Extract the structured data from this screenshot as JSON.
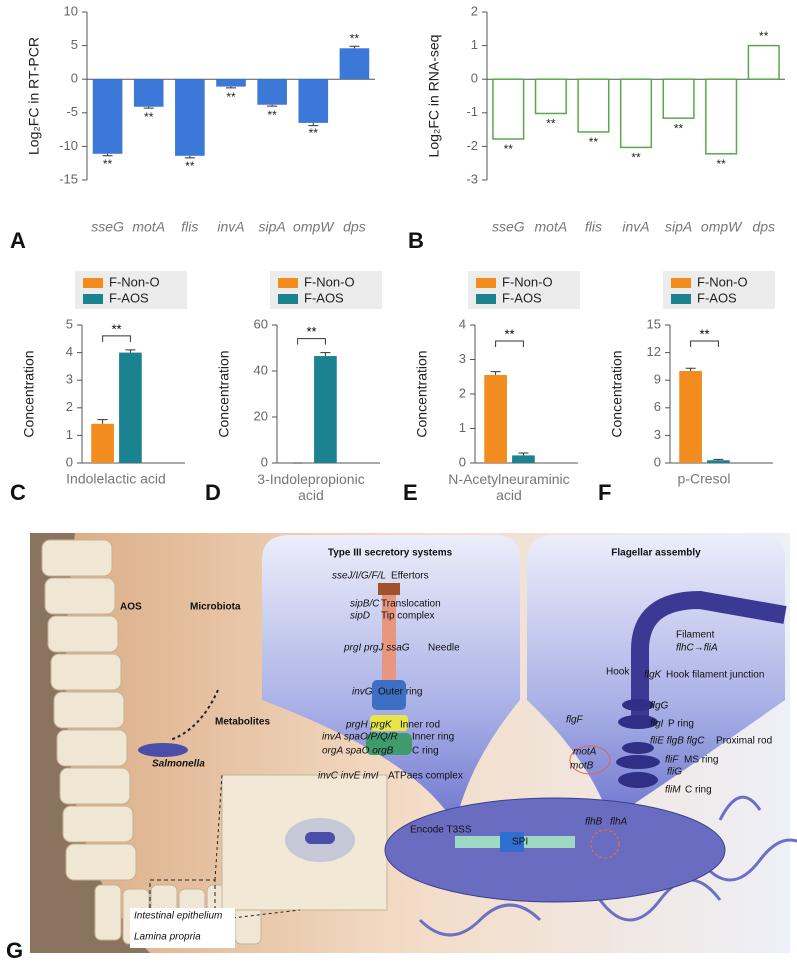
{
  "chart_data": [
    {
      "type": "bar",
      "panel_label": "A",
      "ylabel": "Log₂FC in RT-PCR",
      "categories": [
        "sseG",
        "motA",
        "flis",
        "invA",
        "sipA",
        "ompW",
        "dps"
      ],
      "values": [
        -11.1,
        -4.1,
        -11.4,
        -1.1,
        -3.8,
        -6.5,
        4.6
      ],
      "errors": [
        0.3,
        0.2,
        0.3,
        0.2,
        0.2,
        0.4,
        0.3
      ],
      "annotations": [
        "**",
        "**",
        "**",
        "**",
        "**",
        "**",
        "**"
      ],
      "color": "#3b78d8",
      "filled": true,
      "ylim": [
        -15,
        10
      ],
      "yticks": [
        -15,
        -10,
        -5,
        0,
        5,
        10
      ]
    },
    {
      "type": "bar",
      "panel_label": "B",
      "ylabel": "Log₂FC in RNA-seq",
      "categories": [
        "sseG",
        "motA",
        "flis",
        "invA",
        "sipA",
        "ompW",
        "dps"
      ],
      "values": [
        -1.78,
        -1.02,
        -1.57,
        -2.03,
        -1.16,
        -2.22,
        1.0
      ],
      "annotations": [
        "**",
        "**",
        "**",
        "**",
        "**",
        "**",
        "**"
      ],
      "color": "#5aa84c",
      "filled": false,
      "ylim": [
        -3,
        2
      ],
      "yticks": [
        -3,
        -2,
        -1,
        0,
        1,
        2
      ]
    },
    {
      "type": "grouped_bar",
      "panel_label": "C",
      "ylabel": "Concentration",
      "categories": [
        "Indolelactic acid"
      ],
      "series": [
        {
          "name": "F-Non-O",
          "color": "#f28c1e",
          "values": [
            1.42
          ],
          "errors": [
            0.15
          ]
        },
        {
          "name": "F-AOS",
          "color": "#1b8290",
          "values": [
            4.0
          ],
          "errors": [
            0.1
          ]
        }
      ],
      "significance": "**",
      "ylim": [
        0,
        5
      ],
      "yticks": [
        0,
        1,
        2,
        3,
        4,
        5
      ]
    },
    {
      "type": "grouped_bar",
      "panel_label": "D",
      "ylabel": "Concentration",
      "categories": [
        "3-Indolepropionic acid"
      ],
      "series": [
        {
          "name": "F-Non-O",
          "color": "#f28c1e",
          "values": [
            0
          ],
          "errors": [
            0
          ]
        },
        {
          "name": "F-AOS",
          "color": "#1b8290",
          "values": [
            46.5
          ],
          "errors": [
            1.5
          ]
        }
      ],
      "significance": "**",
      "ylim": [
        0,
        60
      ],
      "yticks": [
        0,
        20,
        40,
        60
      ]
    },
    {
      "type": "grouped_bar",
      "panel_label": "E",
      "ylabel": "Concentration",
      "categories": [
        "N-Acetylneuraminic acid"
      ],
      "series": [
        {
          "name": "F-Non-O",
          "color": "#f28c1e",
          "values": [
            2.55
          ],
          "errors": [
            0.1
          ]
        },
        {
          "name": "F-AOS",
          "color": "#1b8290",
          "values": [
            0.22
          ],
          "errors": [
            0.07
          ]
        }
      ],
      "significance": "**",
      "ylim": [
        0,
        4
      ],
      "yticks": [
        0,
        1,
        2,
        3,
        4
      ]
    },
    {
      "type": "grouped_bar",
      "panel_label": "F",
      "ylabel": "Concentration",
      "categories": [
        "p-Cresol"
      ],
      "series": [
        {
          "name": "F-Non-O",
          "color": "#f28c1e",
          "values": [
            10.0
          ],
          "errors": [
            0.3
          ]
        },
        {
          "name": "F-AOS",
          "color": "#1b8290",
          "values": [
            0.3
          ],
          "errors": [
            0.1
          ]
        }
      ],
      "significance": "**",
      "ylim": [
        0,
        15
      ],
      "yticks": [
        0,
        3,
        6,
        9,
        12,
        15
      ]
    }
  ],
  "diagram": {
    "panel_label": "G",
    "texts": [
      {
        "text": "AOS"
      },
      {
        "text": "Microbiota"
      },
      {
        "text": "Metabolites"
      },
      {
        "text": "Salmonella"
      },
      {
        "text": "Intestinal epithelium"
      },
      {
        "text": "Lamina propria"
      },
      {
        "text": "Type III secretory systems"
      },
      {
        "text": "Flagellar assembly"
      },
      {
        "text": "sseJ/I/G/F/L",
        "color": "#e07b22"
      },
      {
        "text": "Effertors"
      },
      {
        "text": "sipB/C",
        "color": "#e07b22"
      },
      {
        "text": "Translocation"
      },
      {
        "text": "sipD"
      },
      {
        "text": "Tip complex"
      },
      {
        "text": "prgI prgJ ssaG",
        "color": "#e07b22"
      },
      {
        "text": "Needle"
      },
      {
        "text": "invG"
      },
      {
        "text": "Outer ring"
      },
      {
        "text": "prgH prgK",
        "color": "#e07b22"
      },
      {
        "text": "Inner rod"
      },
      {
        "text": "invA spaO/P/Q/R",
        "color": "#e07b22"
      },
      {
        "text": "Inner ring"
      },
      {
        "text": "orgA spaO orgB"
      },
      {
        "text": "C ring"
      },
      {
        "text": "invC invE invI"
      },
      {
        "text": "ATPaes complex"
      },
      {
        "text": "Filament"
      },
      {
        "text": "flhC→fliA",
        "color": "#e07b22"
      },
      {
        "text": "Hook"
      },
      {
        "text": "flgK"
      },
      {
        "text": "Hook filament junction"
      },
      {
        "text": "flgG"
      },
      {
        "text": "flgF"
      },
      {
        "text": "flgI",
        "color": "#e07b22"
      },
      {
        "text": "P ring"
      },
      {
        "text": "fliE flgB flgC"
      },
      {
        "text": "Proximal rod"
      },
      {
        "text": "motA",
        "color": "#e07b22"
      },
      {
        "text": "motB"
      },
      {
        "text": "fliF",
        "color": "#e07b22"
      },
      {
        "text": "MS ring"
      },
      {
        "text": "fliG"
      },
      {
        "text": "fliM",
        "color": "#e07b22"
      },
      {
        "text": "C ring"
      },
      {
        "text": "flhB",
        "color": "#e07b22"
      },
      {
        "text": "flhA"
      },
      {
        "text": "Encode T3SS"
      },
      {
        "text": "SPI"
      }
    ]
  }
}
